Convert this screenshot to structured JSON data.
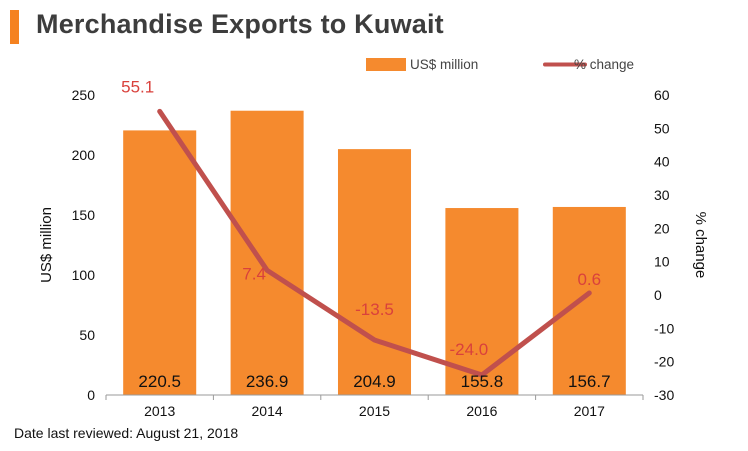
{
  "header": {
    "title": "Merchandise Exports to Kuwait"
  },
  "footnote": "Date last reviewed: August 21, 2018",
  "colors": {
    "bar": "#f58a2e",
    "line": "#c0504d",
    "accent": "#f58220",
    "line_label": "#d9413c"
  },
  "chart_data": {
    "type": "bar",
    "title": "Merchandise Exports to Kuwait",
    "categories": [
      "2013",
      "2014",
      "2015",
      "2016",
      "2017"
    ],
    "series": [
      {
        "name": "US$ million",
        "type": "bar",
        "axis": "left",
        "values": [
          220.5,
          236.9,
          204.9,
          155.8,
          156.7
        ],
        "labels": [
          "220.5",
          "236.9",
          "204.9",
          "155.8",
          "156.7"
        ]
      },
      {
        "name": "% change",
        "type": "line",
        "axis": "right",
        "values": [
          55.1,
          7.4,
          -13.5,
          -24.0,
          0.6
        ],
        "labels": [
          "55.1",
          "7.4",
          "-13.5",
          "-24.0",
          "0.6"
        ]
      }
    ],
    "ylabel": "US$ million",
    "ylim": [
      0,
      250
    ],
    "yticks": [
      "0",
      "50",
      "100",
      "150",
      "200",
      "250"
    ],
    "y2label": "% change",
    "y2lim": [
      -30,
      60
    ],
    "y2ticks": [
      "-30",
      "-20",
      "-10",
      "0",
      "10",
      "20",
      "30",
      "40",
      "50",
      "60"
    ],
    "legend": "top-right",
    "grid": false
  }
}
